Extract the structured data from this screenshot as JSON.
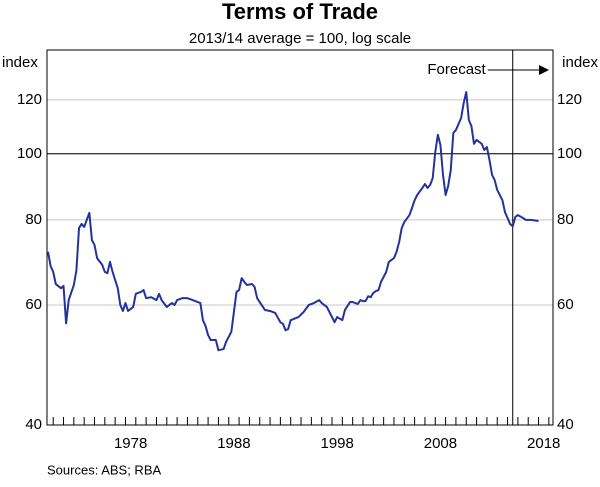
{
  "chart_data": {
    "type": "line",
    "title": "Terms of Trade",
    "subtitle": "2013/14 average = 100, log scale",
    "ylabel": "index",
    "y2label": "index",
    "source": "Sources:  ABS; RBA",
    "log_scale": true,
    "grid": true,
    "reference_line": 100,
    "forecast_start": 2015.5,
    "forecast_label": "Forecast",
    "xlim": [
      1970.4,
      2019.4
    ],
    "xticks": [
      1978,
      1988,
      1998,
      2008,
      2018
    ],
    "xminorticks": [
      1971,
      1972,
      1973,
      1974,
      1975,
      1976,
      1977,
      1978,
      1979,
      1980,
      1981,
      1982,
      1983,
      1984,
      1985,
      1986,
      1987,
      1988,
      1989,
      1990,
      1991,
      1992,
      1993,
      1994,
      1995,
      1996,
      1997,
      1998,
      1999,
      2000,
      2001,
      2002,
      2003,
      2004,
      2005,
      2006,
      2007,
      2008,
      2009,
      2010,
      2011,
      2012,
      2013,
      2014,
      2015,
      2016,
      2017,
      2018,
      2019
    ],
    "ylim": [
      40,
      142
    ],
    "yticks": [
      40,
      60,
      80,
      100,
      120
    ],
    "y2lim": [
      40,
      142
    ],
    "y2ticks": [
      40,
      60,
      80,
      100,
      120
    ],
    "series": [
      {
        "name": "Terms of trade",
        "color": "#22339a",
        "x": [
          1970.5,
          1970.75,
          1971.0,
          1971.25,
          1971.75,
          1972.0,
          1972.25,
          1972.5,
          1973.0,
          1973.25,
          1973.5,
          1973.75,
          1974.0,
          1974.5,
          1974.75,
          1975.0,
          1975.25,
          1975.75,
          1976.0,
          1976.25,
          1976.5,
          1976.75,
          1977.25,
          1977.5,
          1977.75,
          1978.0,
          1978.25,
          1978.75,
          1979.0,
          1979.5,
          1979.75,
          1980.0,
          1980.5,
          1981.0,
          1981.25,
          1981.5,
          1982.0,
          1982.5,
          1982.75,
          1983.0,
          1983.5,
          1984.0,
          1984.5,
          1985.25,
          1985.5,
          1985.75,
          1986.0,
          1986.25,
          1986.75,
          1987.0,
          1987.5,
          1987.75,
          1988.25,
          1988.5,
          1988.75,
          1989.0,
          1989.25,
          1989.5,
          1989.75,
          1990.25,
          1990.5,
          1990.75,
          1991.25,
          1991.5,
          1992.0,
          1992.5,
          1993.0,
          1993.25,
          1993.5,
          1993.75,
          1994.0,
          1994.5,
          1994.75,
          1995.25,
          1995.75,
          1996.25,
          1996.75,
          1997.0,
          1997.5,
          1997.75,
          1998.25,
          1998.5,
          1999.0,
          1999.25,
          1999.75,
          2000.0,
          2000.5,
          2000.75,
          2001.0,
          2001.25,
          2001.5,
          2001.75,
          2002.0,
          2002.25,
          2002.5,
          2002.75,
          2003.25,
          2003.5,
          2004.0,
          2004.25,
          2004.5,
          2004.75,
          2005.0,
          2005.5,
          2005.75,
          2006.0,
          2006.25,
          2006.75,
          2007.0,
          2007.25,
          2007.5,
          2007.75,
          2008.0,
          2008.25,
          2008.5,
          2008.75,
          2009.0,
          2009.25,
          2009.5,
          2009.75,
          2010.0,
          2010.5,
          2010.75,
          2011.0,
          2011.25,
          2011.5,
          2011.75,
          2012.0,
          2012.5,
          2012.75,
          2013.0,
          2013.25,
          2013.5,
          2013.75,
          2014.0,
          2014.5,
          2014.75,
          2015.0,
          2015.25,
          2015.5,
          2015.75,
          2016.0,
          2016.5,
          2016.75,
          2017.25,
          2018.0
        ],
        "values": [
          71.8,
          68.4,
          67.1,
          64.4,
          63.5,
          64.0,
          56.4,
          61.0,
          64.2,
          67.5,
          77.8,
          78.9,
          78.1,
          81.9,
          74.7,
          73.5,
          70.3,
          68.7,
          67.1,
          66.8,
          69.4,
          67.1,
          63.5,
          60.0,
          58.8,
          60.4,
          58.8,
          59.6,
          62.3,
          62.7,
          63.1,
          61.4,
          61.6,
          61.0,
          62.3,
          61.0,
          59.6,
          60.4,
          60.0,
          61.0,
          61.4,
          61.4,
          61.0,
          60.4,
          57.0,
          55.9,
          54.2,
          53.3,
          53.3,
          51.5,
          51.7,
          53.0,
          54.8,
          58.6,
          62.7,
          63.1,
          65.7,
          64.9,
          64.2,
          64.4,
          63.8,
          61.4,
          59.8,
          59.0,
          58.8,
          58.4,
          56.6,
          56.3,
          55.1,
          55.3,
          57.0,
          57.4,
          57.6,
          58.6,
          60.0,
          60.4,
          61.0,
          60.4,
          59.6,
          58.6,
          56.6,
          57.6,
          57.0,
          59.0,
          60.6,
          60.6,
          60.2,
          61.0,
          60.8,
          60.8,
          61.8,
          61.6,
          62.5,
          62.9,
          63.1,
          64.9,
          67.1,
          69.4,
          70.3,
          71.8,
          74.2,
          77.8,
          79.4,
          81.3,
          83.3,
          85.5,
          87.0,
          89.1,
          90.3,
          89.1,
          90.0,
          92.1,
          100.6,
          106.6,
          103.0,
          93.1,
          87.0,
          89.7,
          94.7,
          107.3,
          108.4,
          112.8,
          118.7,
          123.2,
          112.1,
          109.8,
          103.4,
          104.8,
          103.4,
          101.3,
          102.3,
          97.9,
          93.1,
          91.5,
          88.5,
          85.5,
          82.1,
          80.5,
          78.9,
          78.3,
          80.8,
          81.3,
          80.5,
          80.0,
          80.0,
          79.7
        ]
      }
    ]
  }
}
